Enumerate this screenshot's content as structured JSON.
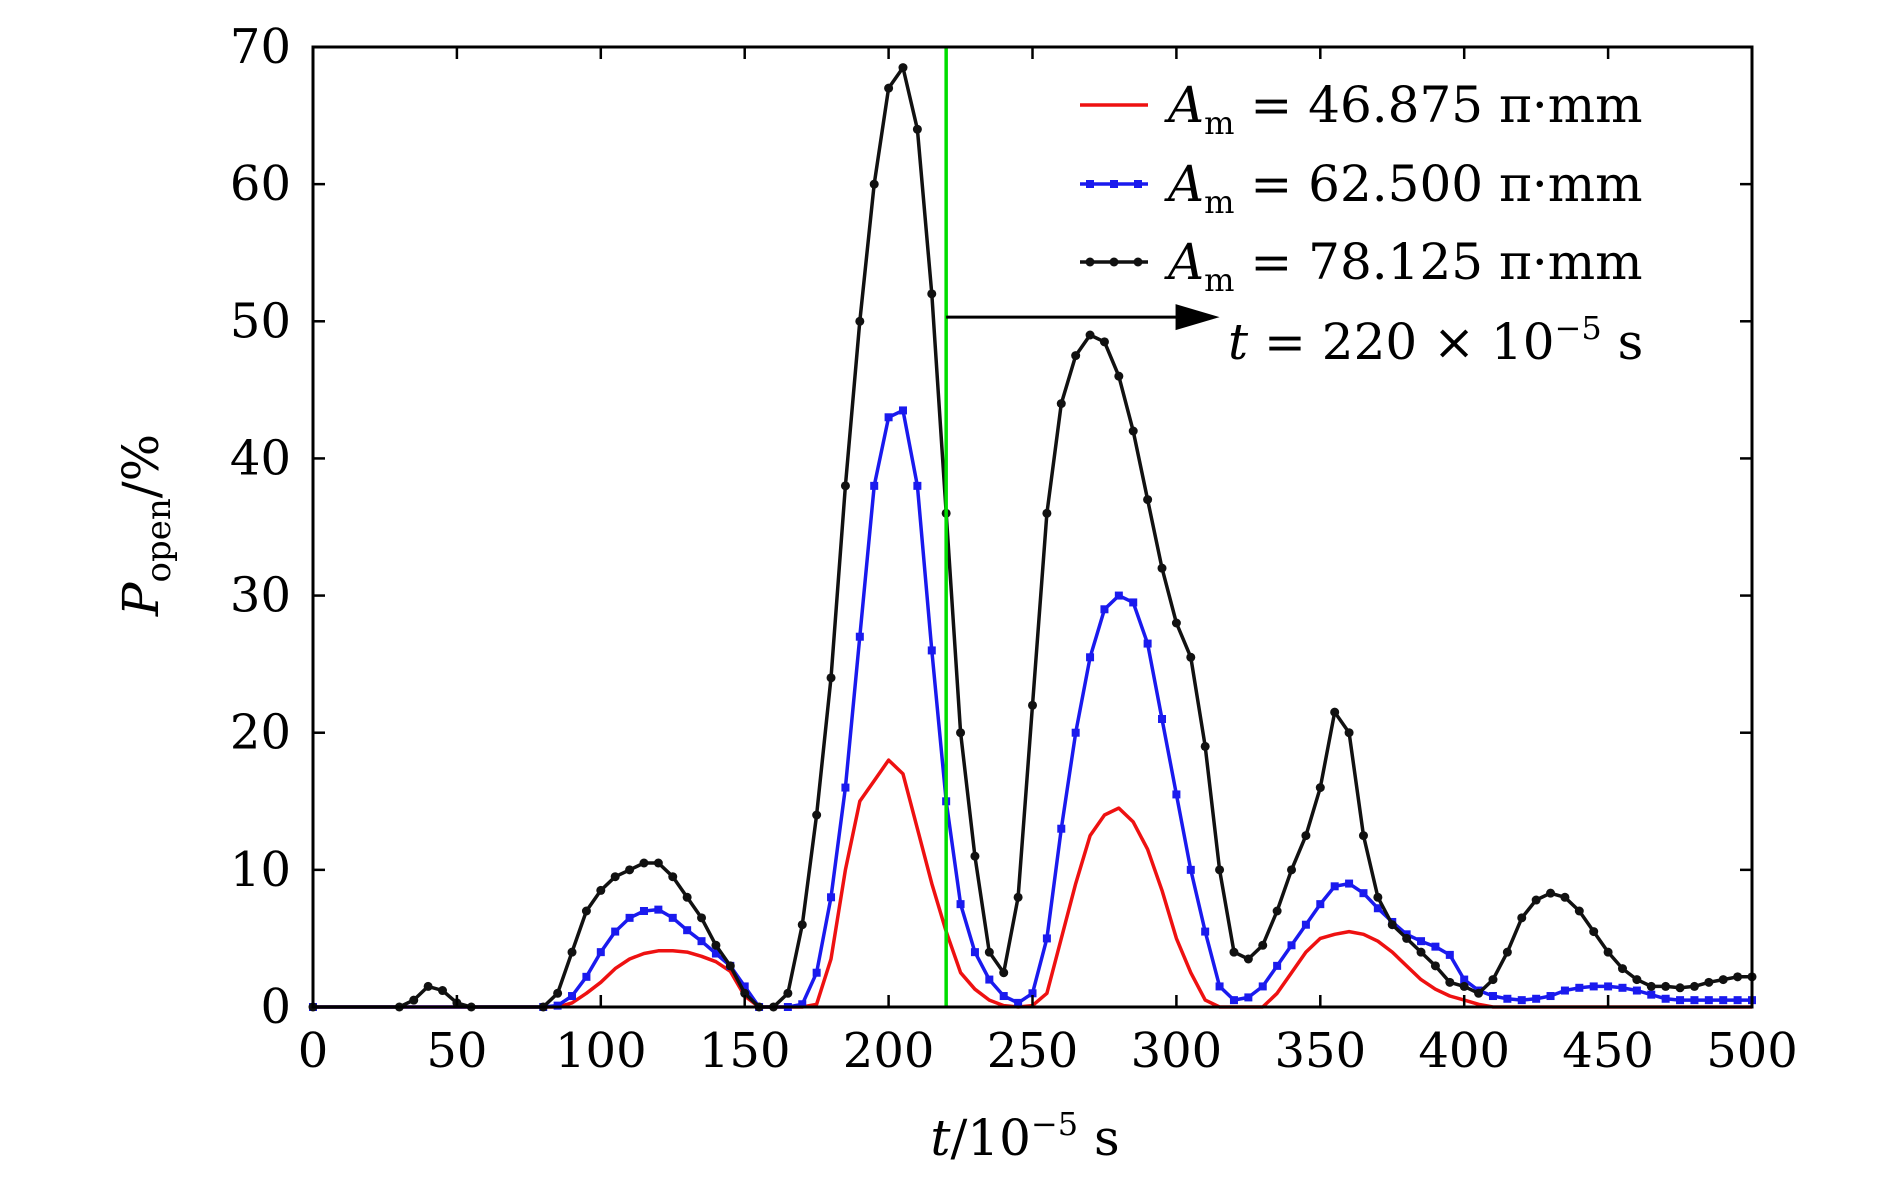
{
  "chart_data": {
    "type": "line",
    "xlabel": {
      "var": "t",
      "text": "/10",
      "sup": "−5",
      "unit": " s"
    },
    "ylabel": {
      "var": "P",
      "sub": "open",
      "unit": "/%"
    },
    "xlim": [
      0,
      500
    ],
    "ylim": [
      0,
      70
    ],
    "x_ticks": [
      "0",
      "50",
      "100",
      "150",
      "200",
      "250",
      "300",
      "350",
      "400",
      "450",
      "500"
    ],
    "y_ticks": [
      "0",
      "10",
      "20",
      "30",
      "40",
      "50",
      "60",
      "70"
    ],
    "grid": false,
    "legend_position": "top-right",
    "marker_line": {
      "x": 220,
      "color": "#00dd00"
    },
    "annotation": {
      "var": "t",
      "eq": " = 220 × 10",
      "sup": "−5",
      "unit": " s",
      "arrow_y": 50.3,
      "arrow_from_x": 220,
      "arrow_to_x": 315
    },
    "series": [
      {
        "name": "A",
        "name_sub": "m",
        "name_value": " = 46.875 π·mm",
        "color": "#ee1111",
        "marker": "none",
        "x": [
          0,
          85,
          90,
          95,
          100,
          105,
          110,
          115,
          120,
          125,
          130,
          135,
          140,
          145,
          150,
          155,
          170,
          175,
          180,
          185,
          190,
          195,
          200,
          205,
          210,
          215,
          220,
          225,
          230,
          235,
          240,
          245,
          250,
          255,
          260,
          265,
          270,
          275,
          280,
          285,
          290,
          295,
          300,
          305,
          310,
          315,
          320,
          325,
          330,
          335,
          340,
          345,
          350,
          355,
          360,
          365,
          370,
          375,
          380,
          385,
          390,
          395,
          400,
          405,
          410,
          500
        ],
        "y": [
          0,
          0,
          0.3,
          1,
          1.8,
          2.8,
          3.5,
          3.9,
          4.1,
          4.1,
          4,
          3.7,
          3.3,
          2.6,
          0.8,
          0,
          0,
          0.2,
          3.5,
          10,
          15,
          16.5,
          18,
          17,
          13,
          9,
          5.5,
          2.5,
          1.3,
          0.5,
          0.1,
          0,
          0.1,
          1,
          5,
          9,
          12.5,
          14,
          14.5,
          13.5,
          11.5,
          8.5,
          5,
          2.5,
          0.5,
          0,
          0,
          0,
          0,
          1,
          2.5,
          4,
          5,
          5.3,
          5.5,
          5.3,
          4.8,
          4,
          3,
          2,
          1.3,
          0.8,
          0.5,
          0.2,
          0,
          0
        ]
      },
      {
        "name": "A",
        "name_sub": "m",
        "name_value": " = 62.500 π·mm",
        "color": "#1a1aee",
        "marker": "square",
        "x": [
          0,
          80,
          85,
          90,
          95,
          100,
          105,
          110,
          115,
          120,
          125,
          130,
          135,
          140,
          145,
          150,
          155,
          165,
          170,
          175,
          180,
          185,
          190,
          195,
          200,
          205,
          210,
          215,
          220,
          225,
          230,
          235,
          240,
          245,
          250,
          255,
          260,
          265,
          270,
          275,
          280,
          285,
          290,
          295,
          300,
          305,
          310,
          315,
          320,
          325,
          330,
          335,
          340,
          345,
          350,
          355,
          360,
          365,
          370,
          375,
          380,
          385,
          390,
          395,
          400,
          405,
          410,
          415,
          420,
          425,
          430,
          435,
          440,
          445,
          450,
          455,
          460,
          465,
          470,
          475,
          480,
          485,
          490,
          495,
          500
        ],
        "y": [
          0,
          0,
          0.1,
          0.8,
          2.2,
          4,
          5.5,
          6.5,
          7,
          7.1,
          6.5,
          5.6,
          4.8,
          3.9,
          3,
          1.5,
          0,
          0,
          0.2,
          2.5,
          8,
          16,
          27,
          38,
          43,
          43.5,
          38,
          26,
          15,
          7.5,
          4,
          2,
          0.8,
          0.3,
          1,
          5,
          13,
          20,
          25.5,
          29,
          30,
          29.5,
          26.5,
          21,
          15.5,
          10,
          5.5,
          1.5,
          0.5,
          0.7,
          1.5,
          3,
          4.5,
          6,
          7.5,
          8.8,
          9,
          8.3,
          7.2,
          6.2,
          5.3,
          4.8,
          4.4,
          3.8,
          2,
          1.2,
          0.8,
          0.6,
          0.5,
          0.6,
          0.8,
          1.2,
          1.4,
          1.5,
          1.5,
          1.4,
          1.2,
          0.9,
          0.6,
          0.5,
          0.5,
          0.5,
          0.5,
          0.5,
          0.5
        ]
      },
      {
        "name": "A",
        "name_sub": "m",
        "name_value": " = 78.125 π·mm",
        "color": "#111111",
        "marker": "circle",
        "x": [
          0,
          30,
          35,
          40,
          45,
          50,
          55,
          80,
          85,
          90,
          95,
          100,
          105,
          110,
          115,
          120,
          125,
          130,
          135,
          140,
          145,
          150,
          155,
          160,
          165,
          170,
          175,
          180,
          185,
          190,
          195,
          200,
          205,
          210,
          215,
          220,
          225,
          230,
          235,
          240,
          245,
          250,
          255,
          260,
          265,
          270,
          275,
          280,
          285,
          290,
          295,
          300,
          305,
          310,
          315,
          320,
          325,
          330,
          335,
          340,
          345,
          350,
          355,
          360,
          365,
          370,
          375,
          380,
          385,
          390,
          395,
          400,
          405,
          410,
          415,
          420,
          425,
          430,
          435,
          440,
          445,
          450,
          455,
          460,
          465,
          470,
          475,
          480,
          485,
          490,
          495,
          500
        ],
        "y": [
          0,
          0,
          0.5,
          1.5,
          1.2,
          0.3,
          0,
          0,
          1,
          4,
          7,
          8.5,
          9.5,
          10,
          10.5,
          10.5,
          9.5,
          8,
          6.5,
          4.5,
          3,
          1,
          0,
          0,
          1,
          6,
          14,
          24,
          38,
          50,
          60,
          67,
          68.5,
          64,
          52,
          36,
          20,
          11,
          4,
          2.5,
          8,
          22,
          36,
          44,
          47.5,
          49,
          48.5,
          46,
          42,
          37,
          32,
          28,
          25.5,
          19,
          10,
          4,
          3.5,
          4.5,
          7,
          10,
          12.5,
          16,
          21.5,
          20,
          12.5,
          8,
          6,
          5,
          4,
          3,
          1.8,
          1.5,
          1,
          2,
          4,
          6.5,
          7.8,
          8.3,
          8,
          7,
          5.5,
          4,
          2.8,
          2,
          1.5,
          1.5,
          1.4,
          1.5,
          1.8,
          2,
          2.2,
          2.2
        ]
      }
    ]
  }
}
